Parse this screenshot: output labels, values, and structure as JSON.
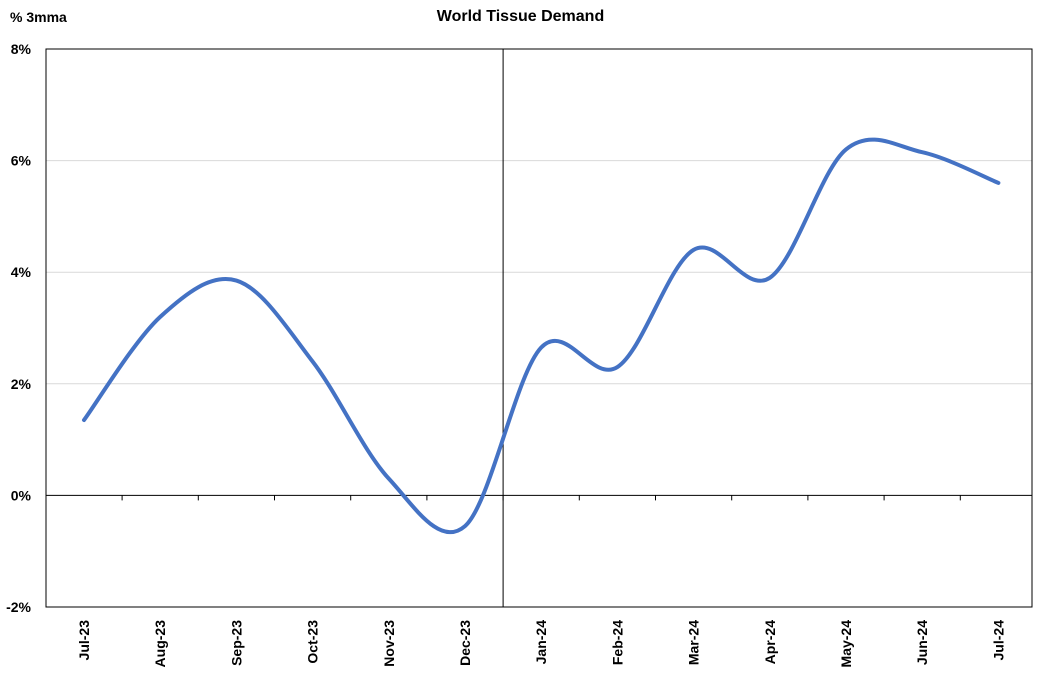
{
  "chart_data": {
    "type": "line",
    "title": "World Tissue Demand",
    "ylabel": "% 3mma",
    "categories": [
      "Jul-23",
      "Aug-23",
      "Sep-23",
      "Oct-23",
      "Nov-23",
      "Dec-23",
      "Jan-24",
      "Feb-24",
      "Mar-24",
      "Apr-24",
      "May-24",
      "Jun-24",
      "Jul-24"
    ],
    "series": [
      {
        "values": [
          1.35,
          3.2,
          3.85,
          2.4,
          0.3,
          -0.55,
          2.65,
          2.3,
          4.4,
          3.9,
          6.2,
          6.15,
          5.6
        ]
      }
    ],
    "ylim": [
      -2,
      8
    ],
    "yticks": [
      -2,
      0,
      2,
      4,
      6,
      8
    ],
    "ytick_labels": [
      "-2%",
      "0%",
      "2%",
      "4%",
      "6%",
      "8%"
    ],
    "grid": true,
    "legend": "none",
    "colors": {
      "line": "#4472c4",
      "grid": "#d9d9d9",
      "axis": "#000000"
    }
  }
}
